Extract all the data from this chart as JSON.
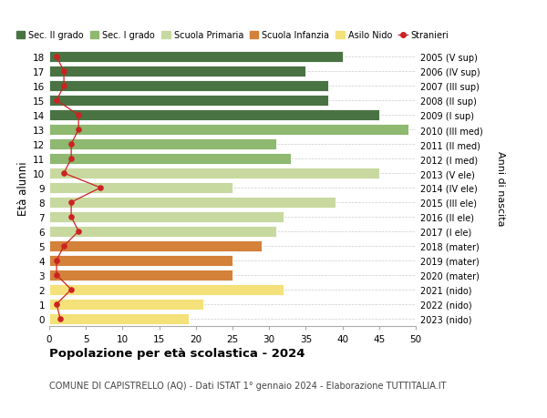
{
  "ages": [
    0,
    1,
    2,
    3,
    4,
    5,
    6,
    7,
    8,
    9,
    10,
    11,
    12,
    13,
    14,
    15,
    16,
    17,
    18
  ],
  "bar_values": [
    19,
    21,
    32,
    25,
    25,
    29,
    31,
    32,
    39,
    25,
    45,
    33,
    31,
    49,
    45,
    38,
    38,
    35,
    40
  ],
  "stranieri": [
    1.5,
    1,
    3,
    1,
    1,
    2,
    4,
    3,
    3,
    7,
    2,
    3,
    3,
    4,
    4,
    1,
    2,
    2,
    1
  ],
  "bar_colors": [
    "#f5e17a",
    "#f5e17a",
    "#f5e17a",
    "#d4813a",
    "#d4813a",
    "#d4813a",
    "#c8d9a0",
    "#c8d9a0",
    "#c8d9a0",
    "#c8d9a0",
    "#c8d9a0",
    "#8fb870",
    "#8fb870",
    "#8fb870",
    "#4a7343",
    "#4a7343",
    "#4a7343",
    "#4a7343",
    "#4a7343"
  ],
  "right_labels": [
    "2023 (nido)",
    "2022 (nido)",
    "2021 (nido)",
    "2020 (mater)",
    "2019 (mater)",
    "2018 (mater)",
    "2017 (I ele)",
    "2016 (II ele)",
    "2015 (III ele)",
    "2014 (IV ele)",
    "2013 (V ele)",
    "2012 (I med)",
    "2011 (II med)",
    "2010 (III med)",
    "2009 (I sup)",
    "2008 (II sup)",
    "2007 (III sup)",
    "2006 (IV sup)",
    "2005 (V sup)"
  ],
  "legend_labels": [
    "Sec. II grado",
    "Sec. I grado",
    "Scuola Primaria",
    "Scuola Infanzia",
    "Asilo Nido",
    "Stranieri"
  ],
  "legend_colors": [
    "#4a7343",
    "#8fb870",
    "#c8d9a0",
    "#d4813a",
    "#f5e17a",
    "#cc2222"
  ],
  "ylabel": "Età alunni",
  "right_ylabel": "Anni di nascita",
  "title": "Popolazione per età scolastica - 2024",
  "subtitle": "COMUNE DI CAPISTRELLO (AQ) - Dati ISTAT 1° gennaio 2024 - Elaborazione TUTTITALIA.IT",
  "xlim": [
    0,
    50
  ],
  "xticks": [
    0,
    5,
    10,
    15,
    20,
    25,
    30,
    35,
    40,
    45,
    50
  ],
  "background_color": "#ffffff",
  "stranieri_color": "#cc2222"
}
